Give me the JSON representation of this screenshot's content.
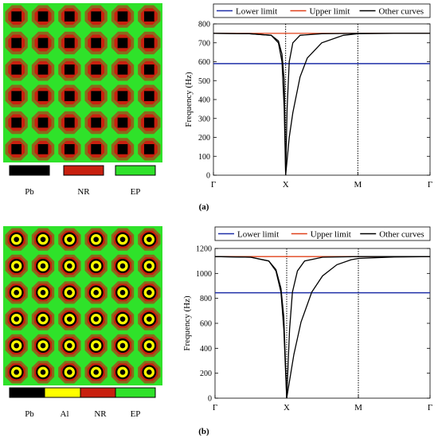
{
  "colors": {
    "pb": "#000000",
    "al": "#ffff00",
    "nr": "#c8200f",
    "ep": "#2fe22a",
    "brown": "#8a6a1c",
    "lower_line": "#1f2fa8",
    "upper_line": "#e0401a",
    "other_line": "#000000"
  },
  "panel_a": {
    "tag": "(a)",
    "material_legend": [
      {
        "label": "Pb",
        "color_key": "pb"
      },
      {
        "label": "NR",
        "color_key": "nr"
      },
      {
        "label": "EP",
        "color_key": "ep"
      }
    ],
    "grid": {
      "rows": 6,
      "cols": 6,
      "design": "pb-core-nr-ring"
    }
  },
  "panel_b": {
    "tag": "(b)",
    "material_legend": [
      {
        "label": "Pb",
        "color_key": "pb"
      },
      {
        "label": "Al",
        "color_key": "al"
      },
      {
        "label": "NR",
        "color_key": "nr"
      },
      {
        "label": "EP",
        "color_key": "ep"
      }
    ],
    "grid": {
      "rows": 6,
      "cols": 6,
      "design": "pb-core-al-ring"
    }
  },
  "chart_data": [
    {
      "type": "line",
      "title": "",
      "xlabel": "",
      "ylabel": "Frequency (Hz)",
      "x_tick_labels": [
        "Γ",
        "X",
        "M",
        "Γ"
      ],
      "x_tick_positions": [
        0,
        1,
        2,
        3
      ],
      "xlim": [
        0,
        3
      ],
      "ylim": [
        0,
        800
      ],
      "yticks": [
        0,
        100,
        200,
        300,
        400,
        500,
        600,
        700,
        800
      ],
      "vertical_dotted_lines_at": [
        1,
        2
      ],
      "legend_placement": "top",
      "series": [
        {
          "name": "Lower limit",
          "kind": "hline",
          "value": 590
        },
        {
          "name": "Upper limit",
          "kind": "hline",
          "value": 750
        },
        {
          "name": "Other curves",
          "kind": "curves",
          "curves": [
            {
              "x": [
                0,
                0.5,
                0.8,
                0.9,
                0.95,
                0.98,
                1.0,
                1.02,
                1.05,
                1.1,
                1.2,
                1.5,
                2.0,
                2.5,
                3.0
              ],
              "y": [
                750,
                748,
                740,
                700,
                600,
                350,
                0,
                350,
                600,
                700,
                740,
                748,
                750,
                750,
                750
              ]
            },
            {
              "x": [
                0,
                0.5,
                0.8,
                0.9,
                0.95,
                0.98,
                1.0,
                1.05,
                1.1,
                1.2,
                1.3,
                1.5,
                1.8,
                2.0,
                2.5,
                3.0
              ],
              "y": [
                750,
                748,
                740,
                710,
                640,
                500,
                0,
                200,
                330,
                520,
                620,
                700,
                740,
                748,
                750,
                750
              ]
            }
          ]
        }
      ]
    },
    {
      "type": "line",
      "title": "",
      "xlabel": "",
      "ylabel": "Frequency (Hz)",
      "x_tick_labels": [
        "Γ",
        "X",
        "M",
        "Γ"
      ],
      "x_tick_positions": [
        0,
        1,
        2,
        3
      ],
      "xlim": [
        0,
        3
      ],
      "ylim": [
        0,
        1200
      ],
      "yticks": [
        0,
        200,
        400,
        600,
        800,
        1000,
        1200
      ],
      "vertical_dotted_lines_at": [
        1,
        2
      ],
      "legend_placement": "top",
      "series": [
        {
          "name": "Lower limit",
          "kind": "hline",
          "value": 845
        },
        {
          "name": "Upper limit",
          "kind": "hline",
          "value": 1135
        },
        {
          "name": "Other curves",
          "kind": "curves",
          "curves": [
            {
              "x": [
                0,
                0.5,
                0.75,
                0.85,
                0.92,
                0.96,
                1.0,
                1.04,
                1.08,
                1.15,
                1.25,
                1.5,
                2.0,
                2.5,
                3.0
              ],
              "y": [
                1135,
                1130,
                1100,
                1020,
                850,
                550,
                0,
                550,
                850,
                1020,
                1100,
                1130,
                1135,
                1135,
                1135
              ]
            },
            {
              "x": [
                0,
                0.5,
                0.75,
                0.85,
                0.92,
                0.96,
                1.0,
                1.1,
                1.2,
                1.35,
                1.5,
                1.7,
                1.9,
                2.0,
                2.5,
                3.0
              ],
              "y": [
                1135,
                1130,
                1100,
                1030,
                880,
                650,
                0,
                350,
                610,
                850,
                980,
                1070,
                1110,
                1120,
                1132,
                1135
              ]
            }
          ]
        }
      ]
    }
  ]
}
